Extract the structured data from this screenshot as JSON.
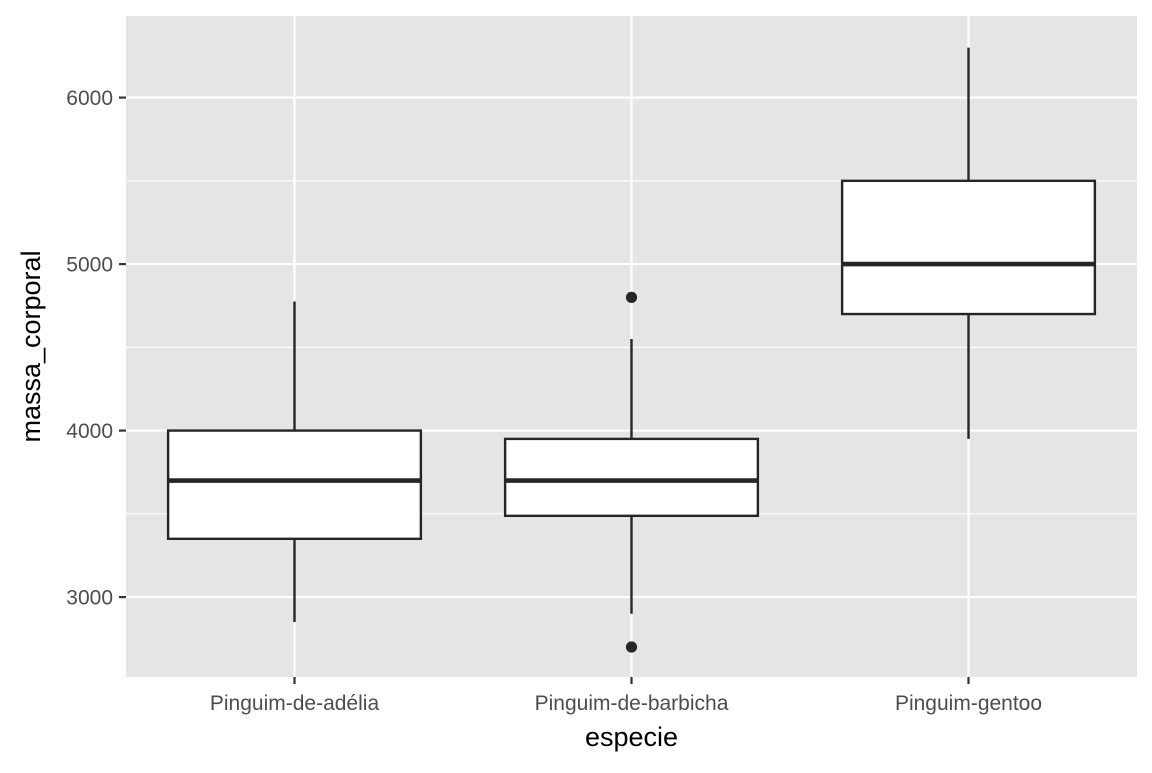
{
  "chart_data": {
    "type": "boxplot",
    "title": "",
    "xlabel": "especie",
    "ylabel": "massa_corporal",
    "categories": [
      "Pinguim-de-adélia",
      "Pinguim-de-barbicha",
      "Pinguim-gentoo"
    ],
    "ylim": [
      2520,
      6490
    ],
    "yticks": [
      3000,
      4000,
      5000,
      6000
    ],
    "grid": true,
    "legend": "none",
    "boxes": [
      {
        "category": "Pinguim-de-adélia",
        "lower_whisker": 2850,
        "q1": 3350,
        "median": 3700,
        "q3": 4000,
        "upper_whisker": 4775,
        "outliers": []
      },
      {
        "category": "Pinguim-de-barbicha",
        "lower_whisker": 2900,
        "q1": 3488,
        "median": 3700,
        "q3": 3950,
        "upper_whisker": 4550,
        "outliers": [
          4800,
          2700
        ]
      },
      {
        "category": "Pinguim-gentoo",
        "lower_whisker": 3950,
        "q1": 4700,
        "median": 5000,
        "q3": 5500,
        "upper_whisker": 6300,
        "outliers": []
      }
    ],
    "colors": {
      "panel_background": "#e5e5e5",
      "grid": "#ffffff",
      "box_fill": "#ffffff",
      "box_line": "#262626"
    }
  }
}
